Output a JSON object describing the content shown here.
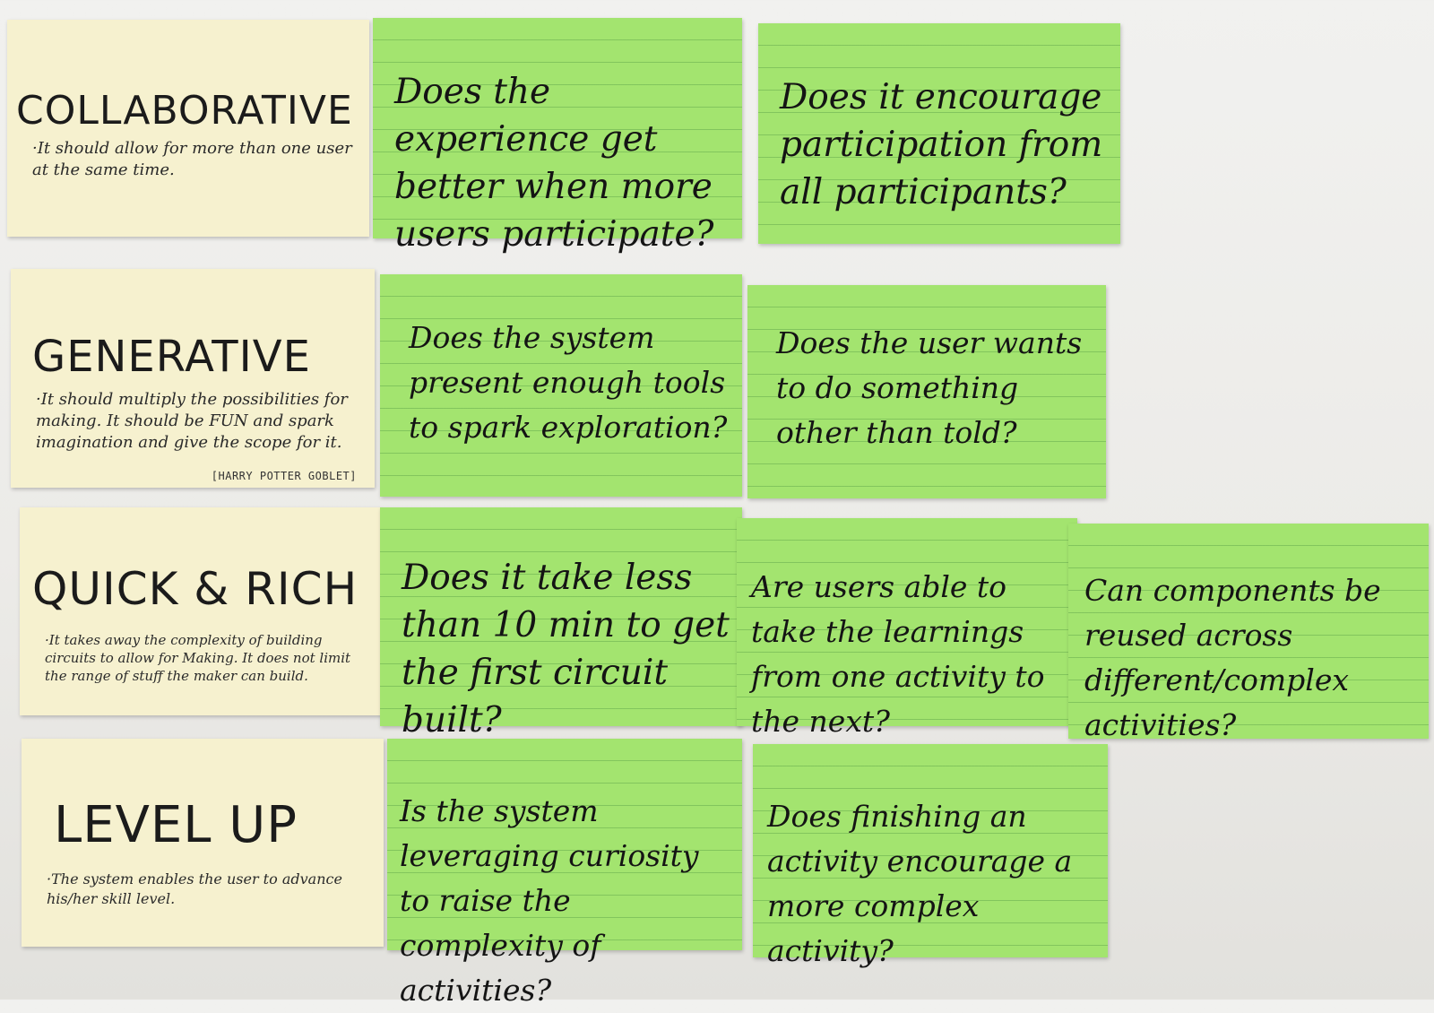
{
  "rows": [
    {
      "criterion": {
        "title": "COLLABORATIVE",
        "description": "·It should allow for more than one user at the same time."
      },
      "questions": [
        "Does the experience get better when more users participate?",
        "Does it encourage participation from all participants?"
      ]
    },
    {
      "criterion": {
        "title": "GENERATIVE",
        "description": "·It should multiply the possibilities for making. It should be FUN and spark imagination and give the scope for it.",
        "note": "[HARRY POTTER GOBLET]"
      },
      "questions": [
        "Does the system present enough tools to spark exploration?",
        "Does the user wants to do something other than told?"
      ]
    },
    {
      "criterion": {
        "title": "QUICK & RICH",
        "description": "·It takes away the complexity of building circuits to allow for Making. It does not limit the range of stuff the maker can build."
      },
      "questions": [
        "Does it take less than 10 min to get the first circuit built?",
        "Are users able to take the learnings from one activity to the next?",
        "Can components be reused across different/complex activities?"
      ]
    },
    {
      "criterion": {
        "title": "LEVEL UP",
        "description": "·The system enables the user to advance his/her skill level."
      },
      "questions": [
        "Is the system leveraging curiosity to raise the complexity of activities?",
        "Does finishing an activity encourage a more complex activity?"
      ]
    }
  ]
}
